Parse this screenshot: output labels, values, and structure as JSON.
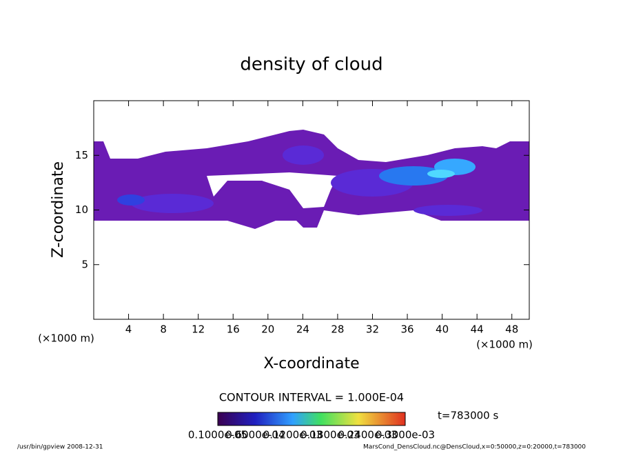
{
  "chart_data": {
    "type": "contour",
    "title": "density of cloud",
    "xlabel": "X-coordinate",
    "ylabel": "Z-coordinate",
    "x_unit_left": "(×1000 m)",
    "x_unit_right": "(×1000 m)",
    "xlim": [
      0,
      50
    ],
    "xticks": [
      4,
      8,
      12,
      16,
      20,
      24,
      28,
      32,
      36,
      40,
      44,
      48
    ],
    "ylim": [
      0,
      20
    ],
    "yticks": [
      5,
      10,
      15
    ],
    "contour_interval": "CONTOUR INTERVAL = 1.000E-04",
    "time": "t=783000 s",
    "colorbar_labels": [
      "0.1000e-05",
      "0.6000e-04",
      "0.1200e-03",
      "0.1800e-03",
      "0.2400e-03",
      "0.3000e-03"
    ],
    "footer_left": "/usr/bin/gpview  2008-12-31",
    "footer_right": "MarsCond_DensCloud.nc@DensCloud,x=0:50000,z=0:20000,t=783000"
  }
}
